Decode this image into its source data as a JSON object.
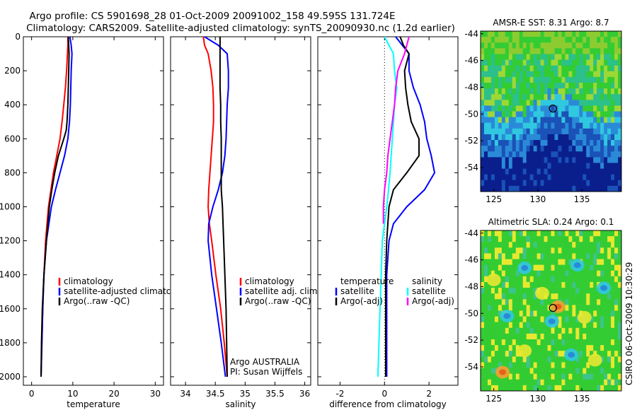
{
  "header": {
    "line1": "Argo profile: CS 5901698_28 01-Oct-2009 20091002_158 49.595S 131.724E",
    "line2": "Climatology: CARS2009. Satellite-adjusted climatology: synTS_20090930.nc (1.2d earlier)"
  },
  "side_stamp": "CSIRO 06-Oct-2009 10:30:29",
  "colors": {
    "climatology": "#ff0000",
    "satellite": "#0000ff",
    "argo": "#000000",
    "salinity_satellite": "#00ffff",
    "salinity_argo": "#ff00ff",
    "deep_blue": "#0a1f8c",
    "mid_blue": "#2a8ad8",
    "green": "#33cc33",
    "yellow": "#e8e830",
    "orange": "#f4a030",
    "cyan": "#30c8e0"
  },
  "chart_data": [
    {
      "id": "temperature",
      "type": "line",
      "xlabel": "temperature",
      "xlim": [
        -2,
        32
      ],
      "ylim": [
        2050,
        0
      ],
      "xticks": [
        "0",
        "10",
        "20",
        "30"
      ],
      "yticks": [
        "0",
        "200",
        "400",
        "600",
        "800",
        "1000",
        "1200",
        "1400",
        "1600",
        "1800",
        "2000"
      ],
      "legend": [
        "climatology",
        "satellite-adjusted climatology",
        "Argo(..raw -QC)"
      ],
      "series": [
        {
          "name": "climatology",
          "color": "#ff0000",
          "depth": [
            0,
            50,
            100,
            200,
            300,
            400,
            500,
            600,
            700,
            800,
            900,
            1000,
            1200,
            1400,
            1600,
            1800,
            2000
          ],
          "values": [
            8.8,
            8.8,
            8.7,
            8.5,
            8.2,
            7.8,
            7.4,
            6.9,
            6.1,
            5.3,
            4.7,
            4.1,
            3.4,
            3.0,
            2.7,
            2.5,
            2.3
          ]
        },
        {
          "name": "satellite-adjusted climatology",
          "color": "#0000ff",
          "depth": [
            0,
            50,
            100,
            200,
            300,
            400,
            500,
            600,
            700,
            800,
            900,
            1000,
            1200,
            1400,
            1600,
            1800,
            2000
          ],
          "values": [
            9.3,
            9.6,
            9.8,
            9.6,
            9.5,
            9.4,
            9.2,
            8.8,
            8.0,
            6.9,
            5.8,
            4.8,
            3.6,
            3.0,
            2.7,
            2.5,
            2.3
          ]
        },
        {
          "name": "Argo(..raw -QC)",
          "color": "#000000",
          "depth": [
            0,
            50,
            100,
            200,
            300,
            400,
            500,
            550,
            600,
            700,
            800,
            900,
            1000,
            1200,
            1400,
            1600,
            1800,
            2000
          ],
          "values": [
            8.9,
            9.0,
            9.1,
            9.0,
            8.9,
            8.8,
            8.6,
            8.4,
            7.8,
            6.5,
            5.6,
            4.9,
            4.3,
            3.6,
            3.0,
            2.6,
            2.4,
            2.3
          ]
        }
      ]
    },
    {
      "id": "salinity",
      "type": "line",
      "xlabel": "salinity",
      "xlim": [
        33.75,
        36.1
      ],
      "ylim": [
        2050,
        0
      ],
      "xticks": [
        "34",
        "34.5",
        "35",
        "35.5",
        "36"
      ],
      "yticks": [],
      "legend": [
        "climatology",
        "satellite adj. clim.",
        "Argo(..raw -QC)"
      ],
      "annotation": [
        "Argo AUSTRALIA",
        "PI: Susan Wijffels"
      ],
      "series": [
        {
          "name": "climatology",
          "color": "#ff0000",
          "depth": [
            0,
            50,
            100,
            200,
            300,
            400,
            500,
            600,
            700,
            800,
            900,
            1000,
            1100,
            1200,
            1400,
            1600,
            1800,
            2000
          ],
          "values": [
            34.3,
            34.32,
            34.38,
            34.43,
            34.46,
            34.47,
            34.47,
            34.45,
            34.43,
            34.41,
            34.39,
            34.38,
            34.4,
            34.44,
            34.51,
            34.59,
            34.65,
            34.7
          ]
        },
        {
          "name": "satellite adj. clim.",
          "color": "#0000ff",
          "depth": [
            0,
            50,
            100,
            200,
            300,
            400,
            500,
            600,
            700,
            800,
            900,
            1000,
            1100,
            1200,
            1400,
            1600,
            1800,
            2000
          ],
          "values": [
            34.32,
            34.55,
            34.7,
            34.72,
            34.72,
            34.7,
            34.69,
            34.68,
            34.66,
            34.62,
            34.55,
            34.46,
            34.39,
            34.38,
            34.44,
            34.52,
            34.6,
            34.67
          ]
        },
        {
          "name": "Argo(..raw -QC)",
          "color": "#000000",
          "depth": [
            0,
            50,
            100,
            200,
            300,
            400,
            500,
            600,
            700,
            800,
            900,
            1000,
            1100,
            1200,
            1400,
            1600,
            1800,
            2000
          ],
          "values": [
            34.58,
            34.58,
            34.58,
            34.58,
            34.58,
            34.59,
            34.59,
            34.6,
            34.6,
            34.6,
            34.6,
            34.62,
            34.63,
            34.64,
            34.66,
            34.68,
            34.69,
            34.7
          ]
        }
      ]
    },
    {
      "id": "difference",
      "type": "line",
      "xlabel": "difference from climatology",
      "xlim": [
        -3,
        3.3
      ],
      "ylim": [
        2050,
        0
      ],
      "xticks": [
        "-2",
        "0",
        "2"
      ],
      "yticks": [],
      "legend_temperature": {
        "title": "temperature",
        "items": [
          "satellite",
          "Argo(-adj)"
        ]
      },
      "legend_salinity": {
        "title": "salinity",
        "items": [
          "satellite",
          "Argo(-adj)"
        ]
      },
      "series": [
        {
          "name": "temperature satellite",
          "color": "#0000ff",
          "depth": [
            0,
            50,
            100,
            200,
            300,
            400,
            500,
            600,
            700,
            800,
            900,
            1000,
            1100,
            1200,
            1400,
            1600,
            1800,
            2000
          ],
          "values": [
            0.5,
            0.8,
            1.1,
            1.1,
            1.3,
            1.6,
            1.8,
            1.9,
            2.1,
            2.25,
            1.8,
            1.0,
            0.4,
            0.2,
            0.1,
            0.1,
            0.1,
            0.1
          ]
        },
        {
          "name": "temperature Argo(-adj)",
          "color": "#000000",
          "depth": [
            0,
            50,
            100,
            200,
            300,
            400,
            500,
            600,
            700,
            800,
            900,
            1000,
            1100,
            1200,
            1400,
            1600,
            1800,
            2000
          ],
          "values": [
            0.7,
            0.85,
            1.1,
            0.9,
            0.95,
            1.05,
            1.2,
            1.55,
            1.55,
            1.0,
            0.4,
            0.2,
            0.15,
            0.1,
            0.05,
            0.05,
            0.05,
            0.05
          ]
        },
        {
          "name": "salinity satellite",
          "color": "#00ffff",
          "depth": [
            0,
            50,
            100,
            200,
            300,
            400,
            500,
            600,
            700,
            800,
            900,
            1000,
            1100,
            1200,
            1400,
            1600,
            1800,
            2000
          ],
          "values": [
            0.0,
            0.2,
            0.4,
            0.45,
            0.55,
            0.45,
            0.4,
            0.35,
            0.3,
            0.25,
            0.18,
            0.1,
            0.0,
            -0.1,
            -0.15,
            -0.2,
            -0.25,
            -0.3
          ]
        },
        {
          "name": "salinity Argo(-adj)",
          "color": "#ff00ff",
          "depth": [
            0,
            50,
            100,
            200,
            300,
            400,
            500,
            600,
            700,
            800,
            900,
            1000,
            1100
          ],
          "values": [
            1.1,
            1.0,
            0.9,
            0.6,
            0.5,
            0.45,
            0.35,
            0.25,
            0.15,
            0.1,
            0.0,
            -0.05,
            -0.05
          ]
        }
      ]
    },
    {
      "id": "sst_map",
      "type": "heatmap",
      "title": "AMSR-E SST: 8.31 Argo: 8.7",
      "xlim": [
        123.5,
        139.5
      ],
      "ylim": [
        -55.8,
        -43.8
      ],
      "xticks": [
        "125",
        "130",
        "135"
      ],
      "yticks": [
        "-44",
        "-46",
        "-48",
        "-50",
        "-52",
        "-54"
      ],
      "float": {
        "lon": 131.724,
        "lat": -49.595
      }
    },
    {
      "id": "sla_map",
      "type": "heatmap",
      "title": "Altimetric SLA: 0.24 Argo: 0.1",
      "xlim": [
        123.5,
        139.5
      ],
      "ylim": [
        -55.8,
        -43.8
      ],
      "xticks": [
        "125",
        "130",
        "135"
      ],
      "yticks": [
        "-44",
        "-46",
        "-48",
        "-50",
        "-52",
        "-54"
      ],
      "float": {
        "lon": 131.724,
        "lat": -49.595
      }
    }
  ]
}
